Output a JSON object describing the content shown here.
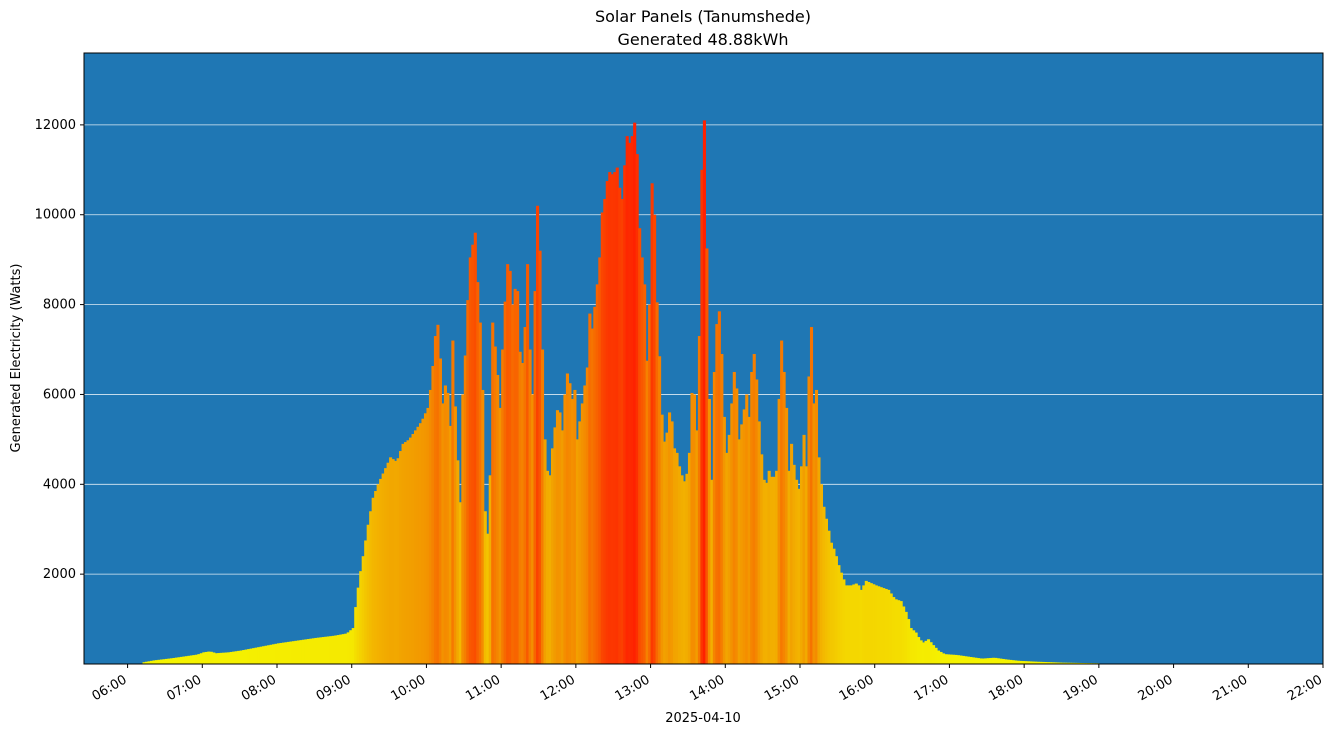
{
  "chart_data": {
    "type": "bar",
    "title": "Solar Panels (Tanumshede)",
    "subtitle": "Generated 48.88kWh",
    "xlabel": "2025-04-10",
    "ylabel": "Generated Electricity (Watts)",
    "x_unit": "hours",
    "xlim": [
      "05:25",
      "22:00"
    ],
    "ylim": [
      0,
      13600
    ],
    "grid": "horizontal",
    "background_color": "#1f77b4",
    "bar_color_scale": [
      "#f5f500",
      "#f2a000",
      "#ff1a00"
    ],
    "x_ticks": [
      "06:00",
      "07:00",
      "08:00",
      "09:00",
      "10:00",
      "11:00",
      "12:00",
      "13:00",
      "14:00",
      "15:00",
      "16:00",
      "17:00",
      "18:00",
      "19:00",
      "20:00",
      "21:00",
      "22:00"
    ],
    "y_ticks": [
      2000,
      4000,
      6000,
      8000,
      10000,
      12000
    ],
    "profile": [
      [
        "06:12",
        40
      ],
      [
        "06:20",
        80
      ],
      [
        "06:35",
        130
      ],
      [
        "06:45",
        170
      ],
      [
        "06:55",
        210
      ],
      [
        "07:00",
        260
      ],
      [
        "07:05",
        280
      ],
      [
        "07:10",
        240
      ],
      [
        "07:20",
        260
      ],
      [
        "07:30",
        300
      ],
      [
        "07:45",
        380
      ],
      [
        "08:00",
        460
      ],
      [
        "08:15",
        520
      ],
      [
        "08:30",
        580
      ],
      [
        "08:45",
        630
      ],
      [
        "08:55",
        680
      ],
      [
        "09:00",
        800
      ],
      [
        "09:03",
        1500
      ],
      [
        "09:05",
        1900
      ],
      [
        "09:08",
        2400
      ],
      [
        "09:12",
        3100
      ],
      [
        "09:16",
        3700
      ],
      [
        "09:20",
        4000
      ],
      [
        "09:25",
        4300
      ],
      [
        "09:30",
        4600
      ],
      [
        "09:35",
        4500
      ],
      [
        "09:40",
        4900
      ],
      [
        "09:45",
        5000
      ],
      [
        "09:50",
        5200
      ],
      [
        "09:55",
        5400
      ],
      [
        "10:00",
        5700
      ],
      [
        "10:03",
        6300
      ],
      [
        "10:06",
        7300
      ],
      [
        "10:08",
        7550
      ],
      [
        "10:10",
        6800
      ],
      [
        "10:12",
        5800
      ],
      [
        "10:15",
        6400
      ],
      [
        "10:18",
        5300
      ],
      [
        "10:20",
        7200
      ],
      [
        "10:23",
        5000
      ],
      [
        "10:26",
        3600
      ],
      [
        "10:28",
        6000
      ],
      [
        "10:31",
        7300
      ],
      [
        "10:33",
        8900
      ],
      [
        "10:35",
        9200
      ],
      [
        "10:38",
        9600
      ],
      [
        "10:40",
        8500
      ],
      [
        "10:42",
        7600
      ],
      [
        "10:44",
        6100
      ],
      [
        "10:46",
        3400
      ],
      [
        "10:48",
        2900
      ],
      [
        "10:50",
        4200
      ],
      [
        "10:52",
        7600
      ],
      [
        "10:55",
        6800
      ],
      [
        "10:58",
        5700
      ],
      [
        "11:00",
        7000
      ],
      [
        "11:03",
        8600
      ],
      [
        "11:05",
        9200
      ],
      [
        "11:07",
        8300
      ],
      [
        "11:09",
        7700
      ],
      [
        "11:11",
        9000
      ],
      [
        "11:13",
        7600
      ],
      [
        "11:15",
        6300
      ],
      [
        "11:18",
        7500
      ],
      [
        "11:20",
        8900
      ],
      [
        "11:22",
        7000
      ],
      [
        "11:24",
        6000
      ],
      [
        "11:26",
        8300
      ],
      [
        "11:28",
        10200
      ],
      [
        "11:30",
        9200
      ],
      [
        "11:32",
        7000
      ],
      [
        "11:34",
        5000
      ],
      [
        "11:36",
        4300
      ],
      [
        "11:38",
        4200
      ],
      [
        "11:40",
        4800
      ],
      [
        "11:43",
        5500
      ],
      [
        "11:45",
        5800
      ],
      [
        "11:48",
        5200
      ],
      [
        "11:50",
        6000
      ],
      [
        "11:53",
        6700
      ],
      [
        "11:55",
        5800
      ],
      [
        "11:58",
        6100
      ],
      [
        "12:00",
        5000
      ],
      [
        "12:03",
        5600
      ],
      [
        "12:05",
        6000
      ],
      [
        "12:08",
        6600
      ],
      [
        "12:10",
        7800
      ],
      [
        "12:13",
        7300
      ],
      [
        "12:15",
        8600
      ],
      [
        "12:17",
        8300
      ],
      [
        "12:19",
        9800
      ],
      [
        "12:21",
        10300
      ],
      [
        "12:23",
        10400
      ],
      [
        "12:25",
        11100
      ],
      [
        "12:27",
        10800
      ],
      [
        "12:29",
        11000
      ],
      [
        "12:31",
        10900
      ],
      [
        "12:33",
        11200
      ],
      [
        "12:35",
        10000
      ],
      [
        "12:37",
        10700
      ],
      [
        "12:39",
        11500
      ],
      [
        "12:41",
        12000
      ],
      [
        "12:43",
        11200
      ],
      [
        "12:45",
        12300
      ],
      [
        "12:47",
        11800
      ],
      [
        "12:49",
        10900
      ],
      [
        "12:51",
        8500
      ],
      [
        "12:53",
        9600
      ],
      [
        "12:55",
        7300
      ],
      [
        "12:57",
        6200
      ],
      [
        "12:59",
        9800
      ],
      [
        "13:01",
        11600
      ],
      [
        "13:03",
        8400
      ],
      [
        "13:05",
        7700
      ],
      [
        "13:07",
        6000
      ],
      [
        "13:09",
        5100
      ],
      [
        "13:11",
        4800
      ],
      [
        "13:13",
        5500
      ],
      [
        "13:15",
        5700
      ],
      [
        "13:18",
        4800
      ],
      [
        "13:20",
        4700
      ],
      [
        "13:22",
        4400
      ],
      [
        "13:24",
        4200
      ],
      [
        "13:27",
        4000
      ],
      [
        "13:30",
        4700
      ],
      [
        "13:33",
        6700
      ],
      [
        "13:35",
        5300
      ],
      [
        "13:37",
        5100
      ],
      [
        "13:39",
        9500
      ],
      [
        "13:41",
        12500
      ],
      [
        "13:43",
        11700
      ],
      [
        "13:45",
        6800
      ],
      [
        "13:48",
        4100
      ],
      [
        "13:50",
        6500
      ],
      [
        "13:53",
        8100
      ],
      [
        "13:55",
        7600
      ],
      [
        "13:58",
        5500
      ],
      [
        "14:00",
        4700
      ],
      [
        "14:03",
        5300
      ],
      [
        "14:05",
        6300
      ],
      [
        "14:07",
        6700
      ],
      [
        "14:10",
        5000
      ],
      [
        "14:13",
        5500
      ],
      [
        "14:16",
        6000
      ],
      [
        "14:18",
        5500
      ],
      [
        "14:21",
        7000
      ],
      [
        "14:23",
        6800
      ],
      [
        "14:26",
        5400
      ],
      [
        "14:29",
        4300
      ],
      [
        "14:31",
        3900
      ],
      [
        "14:34",
        4300
      ],
      [
        "14:37",
        4100
      ],
      [
        "14:40",
        4300
      ],
      [
        "14:42",
        5900
      ],
      [
        "14:44",
        7200
      ],
      [
        "14:46",
        6500
      ],
      [
        "14:48",
        5700
      ],
      [
        "14:50",
        4300
      ],
      [
        "14:52",
        4900
      ],
      [
        "14:55",
        4200
      ],
      [
        "14:58",
        3900
      ],
      [
        "15:00",
        4400
      ],
      [
        "15:02",
        5100
      ],
      [
        "15:04",
        4400
      ],
      [
        "15:06",
        6400
      ],
      [
        "15:08",
        7500
      ],
      [
        "15:10",
        5800
      ],
      [
        "15:12",
        6100
      ],
      [
        "15:14",
        4600
      ],
      [
        "15:16",
        4000
      ],
      [
        "15:18",
        3500
      ],
      [
        "15:21",
        3100
      ],
      [
        "15:24",
        2700
      ],
      [
        "15:27",
        2500
      ],
      [
        "15:30",
        2200
      ],
      [
        "15:33",
        1950
      ],
      [
        "15:36",
        1750
      ],
      [
        "15:40",
        1750
      ],
      [
        "15:45",
        1800
      ],
      [
        "15:48",
        1650
      ],
      [
        "15:52",
        1850
      ],
      [
        "15:56",
        1800
      ],
      [
        "16:00",
        1750
      ],
      [
        "16:05",
        1700
      ],
      [
        "16:10",
        1650
      ],
      [
        "16:15",
        1450
      ],
      [
        "16:20",
        1400
      ],
      [
        "16:25",
        1100
      ],
      [
        "16:28",
        800
      ],
      [
        "16:32",
        700
      ],
      [
        "16:35",
        550
      ],
      [
        "16:38",
        480
      ],
      [
        "16:42",
        550
      ],
      [
        "16:46",
        420
      ],
      [
        "16:50",
        300
      ],
      [
        "16:55",
        220
      ],
      [
        "17:05",
        200
      ],
      [
        "17:15",
        160
      ],
      [
        "17:25",
        120
      ],
      [
        "17:35",
        140
      ],
      [
        "17:45",
        100
      ],
      [
        "17:55",
        70
      ],
      [
        "18:10",
        50
      ],
      [
        "18:30",
        30
      ],
      [
        "19:00",
        15
      ]
    ]
  }
}
